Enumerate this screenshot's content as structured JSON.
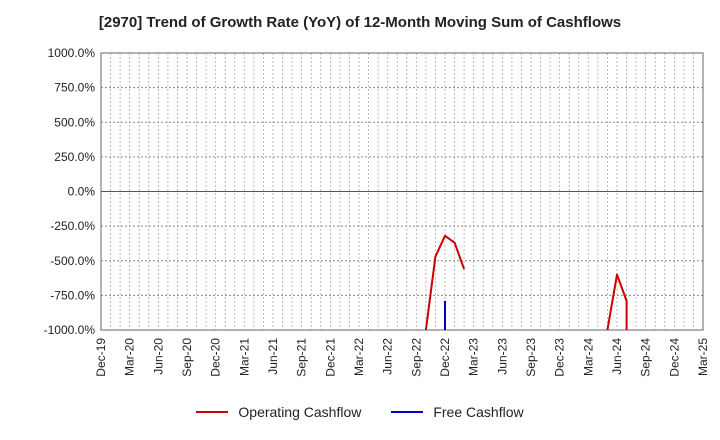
{
  "chart_data": {
    "type": "line",
    "title": "[2970]  Trend of Growth Rate (YoY) of 12-Month Moving Sum of Cashflows",
    "xlabel": "",
    "ylabel": "",
    "ylim": [
      -1000,
      1000
    ],
    "y_ticks": [
      1000,
      750,
      500,
      250,
      0,
      -250,
      -500,
      -750,
      -1000
    ],
    "y_tick_labels": [
      "1000.0%",
      "750.0%",
      "500.0%",
      "250.0%",
      "0.0%",
      "-250.0%",
      "-500.0%",
      "-750.0%",
      "-1000.0%"
    ],
    "x_range": [
      "2019-12",
      "2025-03"
    ],
    "x_tick_labels": [
      "Dec-19",
      "Mar-20",
      "Jun-20",
      "Sep-20",
      "Dec-20",
      "Mar-21",
      "Jun-21",
      "Sep-21",
      "Dec-21",
      "Mar-22",
      "Jun-22",
      "Sep-22",
      "Dec-22",
      "Mar-23",
      "Jun-23",
      "Sep-23",
      "Dec-23",
      "Mar-24",
      "Jun-24",
      "Sep-24",
      "Dec-24",
      "Mar-25"
    ],
    "grid": true,
    "legend_position": "bottom",
    "series": [
      {
        "name": "Operating Cashflow",
        "color": "#cc0000",
        "points": [
          {
            "x": "2022-10",
            "y": -1000
          },
          {
            "x": "2022-11",
            "y": -470
          },
          {
            "x": "2022-12",
            "y": -320
          },
          {
            "x": "2023-01",
            "y": -370
          },
          {
            "x": "2023-02",
            "y": -560
          },
          null,
          {
            "x": "2024-05",
            "y": -1000
          },
          {
            "x": "2024-06",
            "y": -600
          },
          {
            "x": "2024-07",
            "y": -790
          },
          {
            "x": "2024-07",
            "y": -1000
          }
        ]
      },
      {
        "name": "Free Cashflow",
        "color": "#0000cc",
        "points": [
          {
            "x": "2022-12",
            "y": -790
          },
          {
            "x": "2022-12",
            "y": -1000
          }
        ]
      }
    ]
  }
}
